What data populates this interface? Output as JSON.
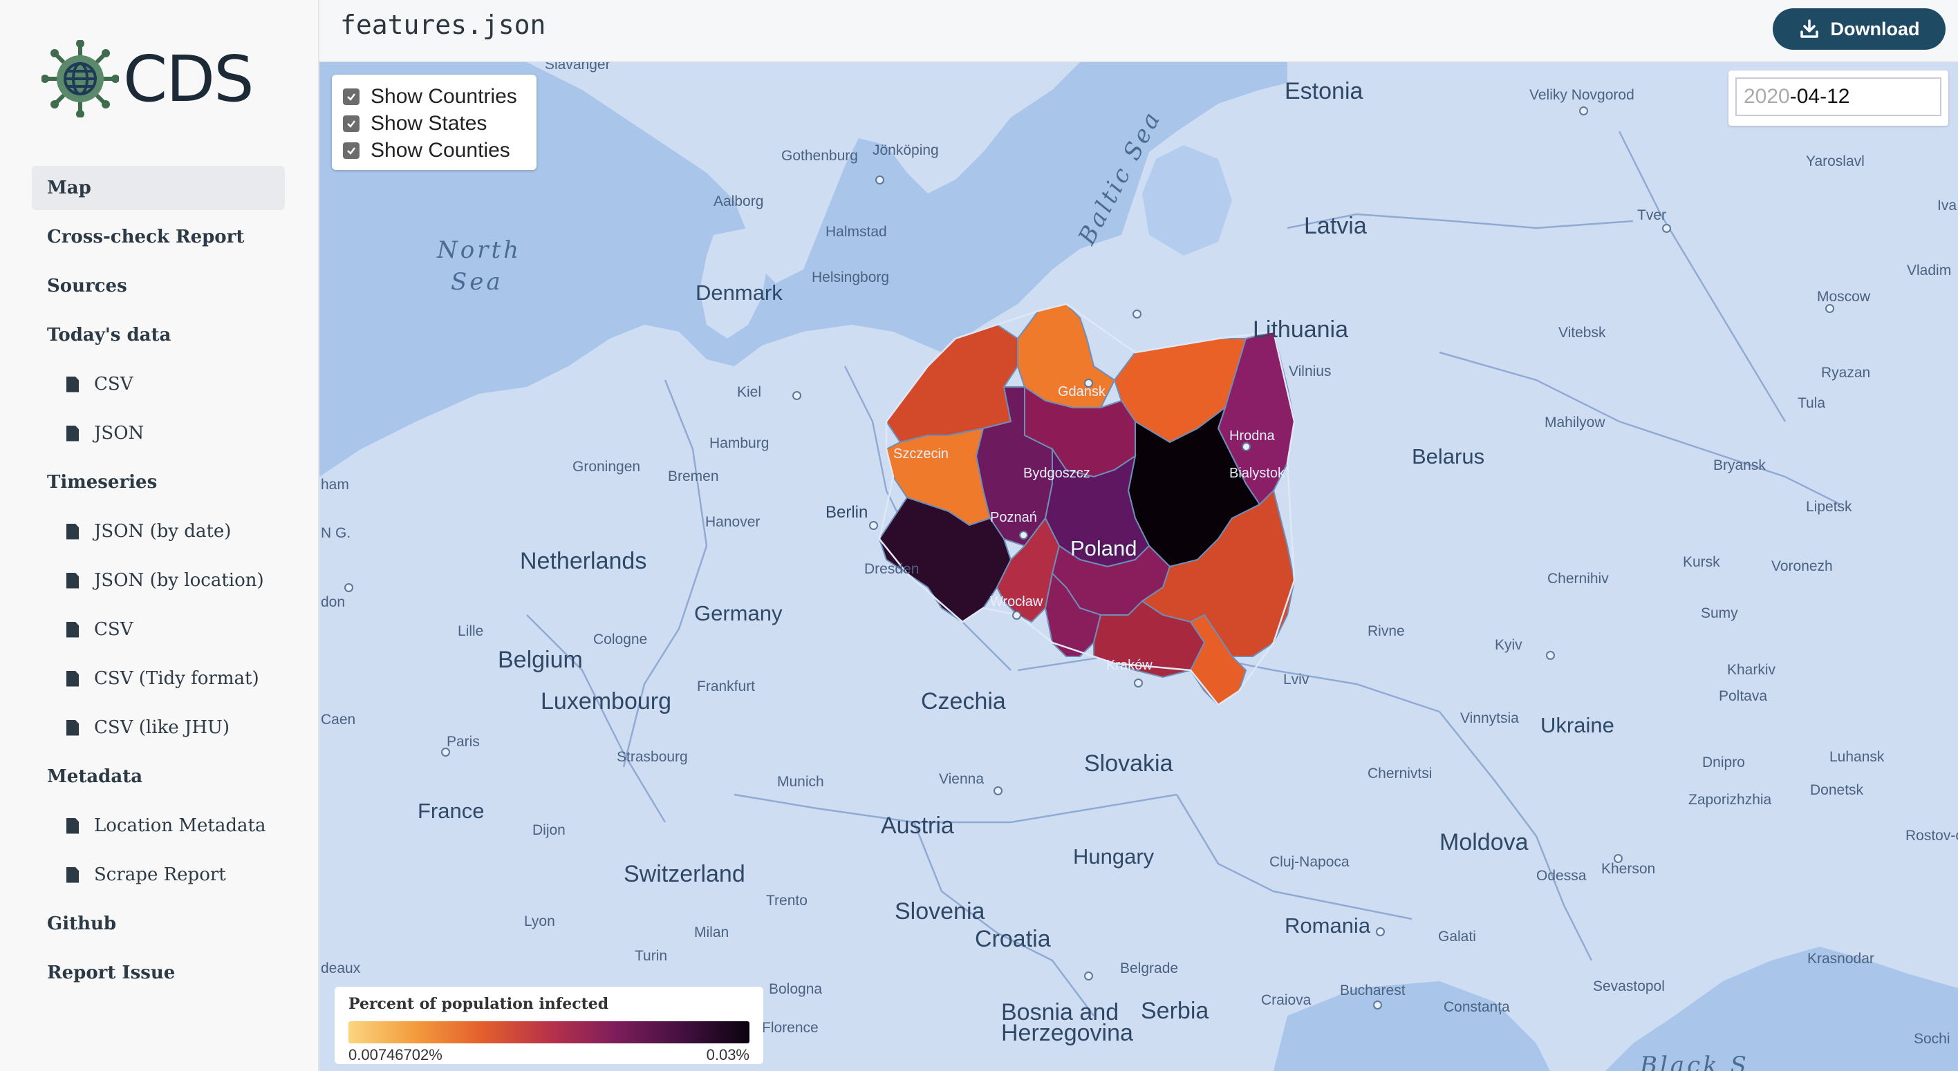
{
  "brand": {
    "name": "CDS"
  },
  "header": {
    "filename": "features.json",
    "download_label": "Download"
  },
  "nav": [
    {
      "label": "Map",
      "type": "section",
      "active": true
    },
    {
      "label": "Cross-check Report",
      "type": "section"
    },
    {
      "label": "Sources",
      "type": "section"
    },
    {
      "label": "Today's data",
      "type": "section"
    },
    {
      "label": "CSV",
      "type": "file"
    },
    {
      "label": "JSON",
      "type": "file"
    },
    {
      "label": "Timeseries",
      "type": "section"
    },
    {
      "label": "JSON (by date)",
      "type": "file"
    },
    {
      "label": "JSON (by location)",
      "type": "file"
    },
    {
      "label": "CSV",
      "type": "file"
    },
    {
      "label": "CSV (Tidy format)",
      "type": "file"
    },
    {
      "label": "CSV (like JHU)",
      "type": "file"
    },
    {
      "label": "Metadata",
      "type": "section"
    },
    {
      "label": "Location Metadata",
      "type": "file"
    },
    {
      "label": "Scrape Report",
      "type": "file"
    },
    {
      "label": "Github",
      "type": "section"
    },
    {
      "label": "Report Issue",
      "type": "section"
    }
  ],
  "layers": [
    {
      "label": "Show Countries",
      "checked": true
    },
    {
      "label": "Show States",
      "checked": true
    },
    {
      "label": "Show Counties",
      "checked": true
    }
  ],
  "date": {
    "year": "2020",
    "rest": "-04-12"
  },
  "legend": {
    "title": "Percent of population infected",
    "min_label": "0.00746702%",
    "max_label": "0.03%",
    "colors": [
      "#fbd57f",
      "#f39b3d",
      "#e35f2c",
      "#b8324a",
      "#7d1d5a",
      "#43103f",
      "#0a0310"
    ]
  },
  "map_labels": {
    "countries": [
      "Estonia",
      "Latvia",
      "Lithuania",
      "Denmark",
      "Belarus",
      "Netherlands",
      "Germany",
      "Belgium",
      "Luxembourg",
      "Czechia",
      "Slovakia",
      "Ukraine",
      "France",
      "Austria",
      "Switzerland",
      "Hungary",
      "Moldova",
      "Romania",
      "Slovenia",
      "Croatia",
      "Serbia",
      "Bosnia and",
      "Herzegovina",
      "Poland"
    ],
    "seas": [
      "North",
      "Sea",
      "Baltic Sea",
      "Black S"
    ],
    "cities": [
      "Slavanger",
      "Veliky Novgorod",
      "Yaroslavl",
      "Gothenburg",
      "Jönköping",
      "Aalborg",
      "Halmstad",
      "Helsingborg",
      "Tver",
      "Moscow",
      "Vladim",
      "Kiel",
      "Gdansk",
      "Vilnius",
      "Vitebsk",
      "Ryazan",
      "Hamburg",
      "Szczecin",
      "Hrodna",
      "Mahilyow",
      "Tula",
      "Groningen",
      "Bremen",
      "Bydgoszcz",
      "Bialystok",
      "Bryansk",
      "Hanover",
      "Berlin",
      "Poznań",
      "Lipetsk",
      "Dresden",
      "Wrocław",
      "Chernihiv",
      "Kursk",
      "Voronezh",
      "Cologne",
      "Rivne",
      "Sumy",
      "Kyiv",
      "Kraków",
      "Lviv",
      "Kharkiv",
      "Frankfurt",
      "Lille",
      "Poltava",
      "Vinnytsia",
      "Paris",
      "Strasbourg",
      "Dnipro",
      "Luhansk",
      "Munich",
      "Vienna",
      "Chernivtsi",
      "Zaporizhzhia",
      "Donetsk",
      "Dijon",
      "Rostov-on-Do",
      "Cluj-Napoca",
      "Kherson",
      "Trento",
      "Odessa",
      "Lyon",
      "Milan",
      "Galati",
      "Turin",
      "Belgrade",
      "Krasnodar",
      "Bologna",
      "Craiova",
      "Bucharest",
      "Constanța",
      "Sevastopol",
      "Florence",
      "Sochi",
      "Caen",
      "ham",
      "N G.",
      "don",
      "deaux",
      "Iva"
    ]
  }
}
